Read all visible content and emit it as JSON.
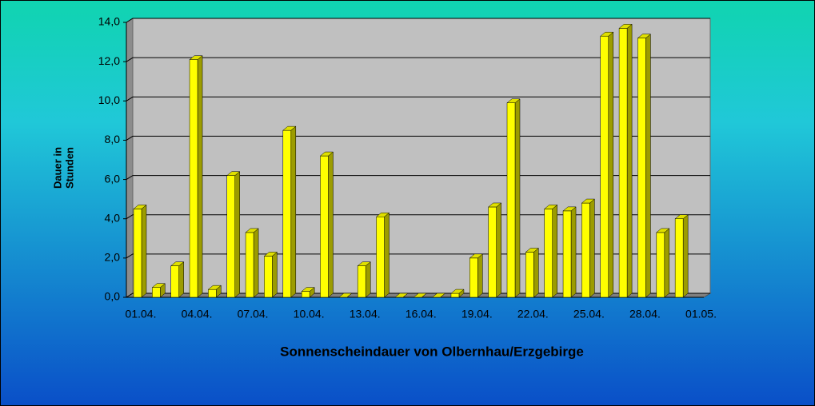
{
  "chart_data": {
    "type": "bar3d",
    "title": "Sonnenscheindauer von Olbernhau/Erzgebirge",
    "ylabel": [
      "Dauer in",
      "Stunden"
    ],
    "categories": [
      "01.04.",
      null,
      null,
      "04.04.",
      null,
      null,
      "07.04.",
      null,
      null,
      "10.04.",
      null,
      null,
      "13.04.",
      null,
      null,
      "16.04.",
      null,
      null,
      "19.04.",
      null,
      null,
      "22.04.",
      null,
      null,
      "25.04.",
      null,
      null,
      "28.04.",
      null,
      null,
      "01.05."
    ],
    "values": [
      4.5,
      0.5,
      1.6,
      12.1,
      0.4,
      6.2,
      3.3,
      2.1,
      8.5,
      0.3,
      7.2,
      0,
      1.6,
      4.1,
      0,
      0,
      0,
      0.2,
      2.0,
      4.6,
      9.9,
      2.3,
      4.5,
      4.4,
      4.8,
      13.3,
      13.7,
      13.2,
      3.3,
      4.0,
      null
    ],
    "color": "#ffff00",
    "ylim": [
      0,
      14
    ],
    "yticks": [
      {
        "value": 0,
        "label": "0,0"
      },
      {
        "value": 2,
        "label": "2,0"
      },
      {
        "value": 4,
        "label": "4,0"
      },
      {
        "value": 6,
        "label": "6,0"
      },
      {
        "value": 8,
        "label": "8,0"
      },
      {
        "value": 10,
        "label": "10,0"
      },
      {
        "value": 12,
        "label": "12,0"
      },
      {
        "value": 14,
        "label": "14,0"
      }
    ],
    "grid": true
  }
}
